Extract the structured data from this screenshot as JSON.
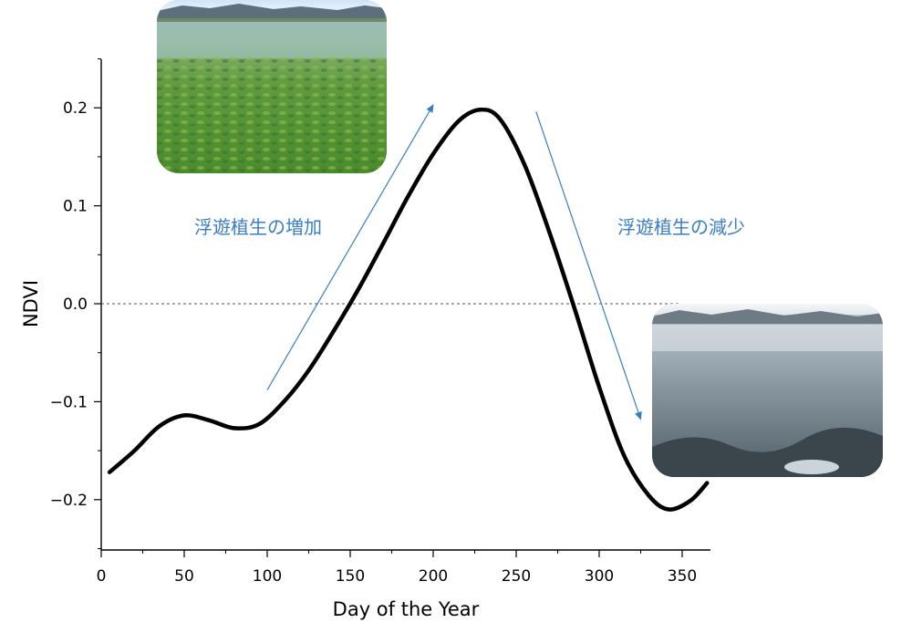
{
  "chart_data": {
    "type": "line",
    "xlabel": "Day of the Year",
    "ylabel": "NDVI",
    "xlim": [
      0,
      365
    ],
    "ylim": [
      -0.25,
      0.25
    ],
    "x_ticks": [
      "0",
      "50",
      "100",
      "150",
      "200",
      "250",
      "300",
      "350"
    ],
    "y_ticks": [
      "−0.2",
      "−0.1",
      "0.0",
      "0.1",
      "0.2"
    ],
    "zero_line": "dashed",
    "series": [
      {
        "color": "#000000",
        "x": [
          5,
          20,
          35,
          50,
          65,
          80,
          95,
          110,
          125,
          140,
          155,
          170,
          185,
          200,
          215,
          228,
          240,
          255,
          270,
          285,
          300,
          315,
          330,
          342,
          355,
          365
        ],
        "y": [
          -0.172,
          -0.15,
          -0.125,
          -0.114,
          -0.119,
          -0.127,
          -0.123,
          -0.1,
          -0.068,
          -0.028,
          0.015,
          0.062,
          0.11,
          0.153,
          0.186,
          0.198,
          0.189,
          0.142,
          0.073,
          -0.004,
          -0.085,
          -0.155,
          -0.196,
          -0.21,
          -0.201,
          -0.183
        ]
      }
    ],
    "annotations": [
      {
        "text": "浮遊植生の増加",
        "color": "#3a7ec0",
        "arrow": {
          "from": [
            100,
            -0.088
          ],
          "to": [
            200,
            0.203
          ]
        }
      },
      {
        "text": "浮遊植生の減少",
        "color": "#3a7ec0",
        "arrow": {
          "from": [
            262,
            0.196
          ],
          "to": [
            325,
            -0.118
          ]
        }
      }
    ]
  },
  "photos": [
    {
      "icon": "lake-with-floating-vegetation-photo",
      "position": "top-left"
    },
    {
      "icon": "lake-without-vegetation-photo",
      "position": "right"
    }
  ]
}
